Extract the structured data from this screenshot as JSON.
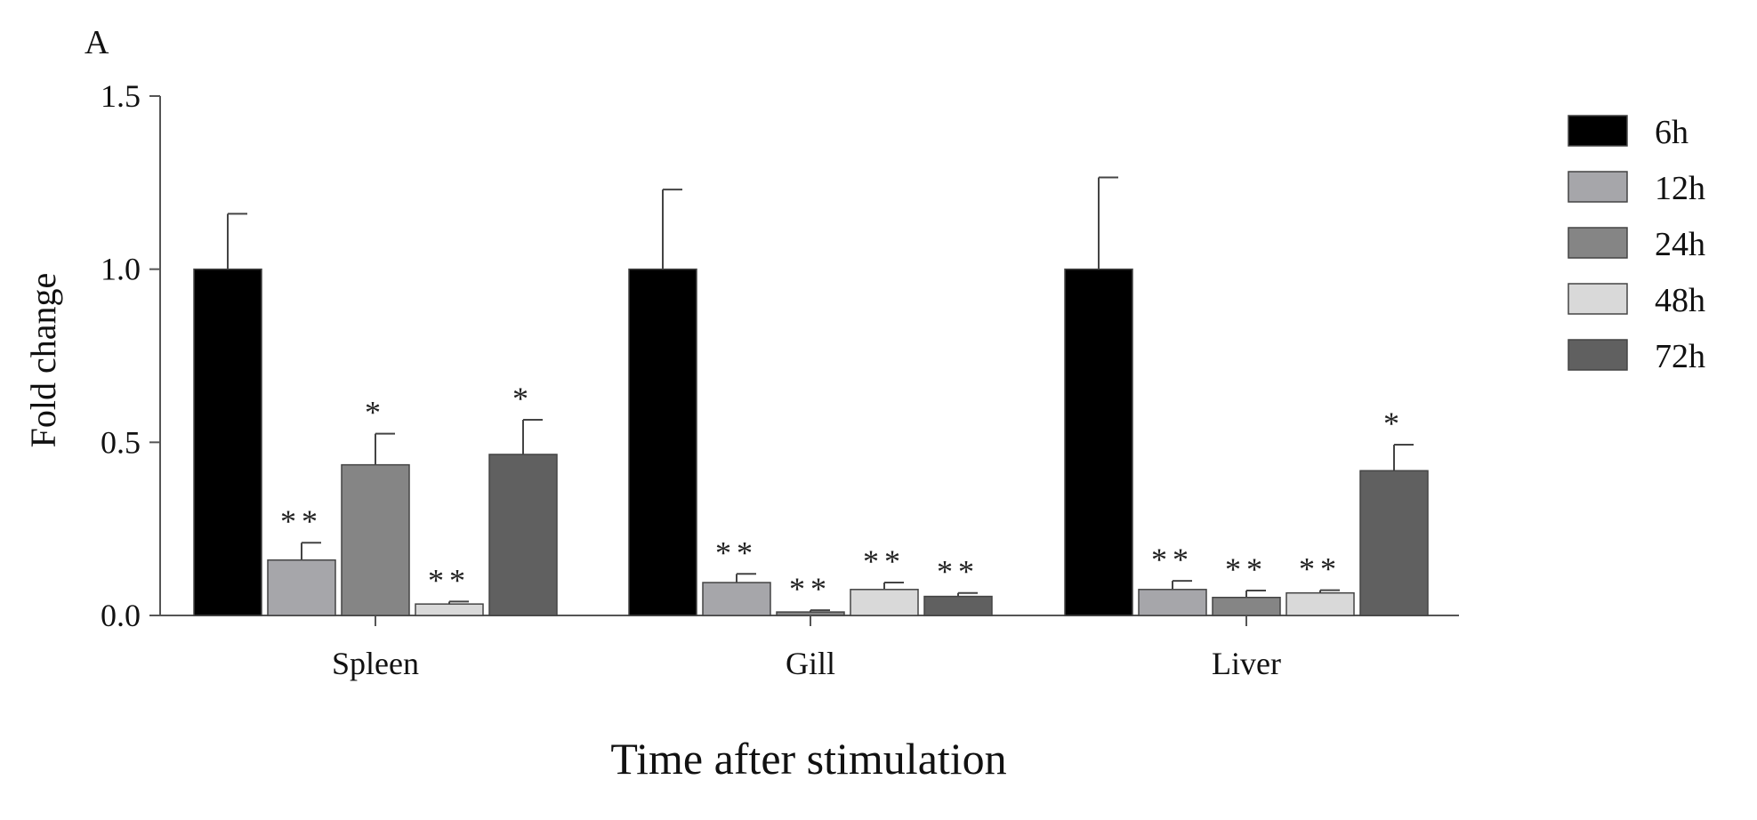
{
  "chart_data": {
    "type": "bar",
    "panel_label": "A",
    "title": "",
    "xlabel": "Time after stimulation",
    "ylabel": "Fold change",
    "ylim": [
      0,
      1.5
    ],
    "yticks": [
      0,
      0.5,
      1.0,
      1.5
    ],
    "ytick_labels": [
      "0.0",
      "0.5",
      "1.0",
      "1.5"
    ],
    "categories": [
      "Spleen",
      "Gill",
      "Liver"
    ],
    "legend_position": "right",
    "series": [
      {
        "name": "6h",
        "color": "#000000",
        "values": [
          1.0,
          1.0,
          1.0
        ],
        "errors": [
          0.16,
          0.23,
          0.265
        ],
        "sig": [
          "",
          "",
          ""
        ]
      },
      {
        "name": "12h",
        "color": "#a6a6aa",
        "values": [
          0.16,
          0.095,
          0.075
        ],
        "errors": [
          0.05,
          0.025,
          0.025
        ],
        "sig": [
          "**",
          "**",
          "**"
        ]
      },
      {
        "name": "24h",
        "color": "#858585",
        "values": [
          0.435,
          0.01,
          0.052
        ],
        "errors": [
          0.09,
          0.005,
          0.02
        ],
        "sig": [
          "*",
          "**",
          "**"
        ]
      },
      {
        "name": "48h",
        "color": "#d9d9d9",
        "values": [
          0.033,
          0.075,
          0.065
        ],
        "errors": [
          0.007,
          0.02,
          0.008
        ],
        "sig": [
          "**",
          "**",
          "**"
        ]
      },
      {
        "name": "72h",
        "color": "#606060",
        "values": [
          0.465,
          0.055,
          0.418
        ],
        "errors": [
          0.1,
          0.01,
          0.075
        ],
        "sig": [
          "*",
          "**",
          "*"
        ]
      }
    ]
  }
}
